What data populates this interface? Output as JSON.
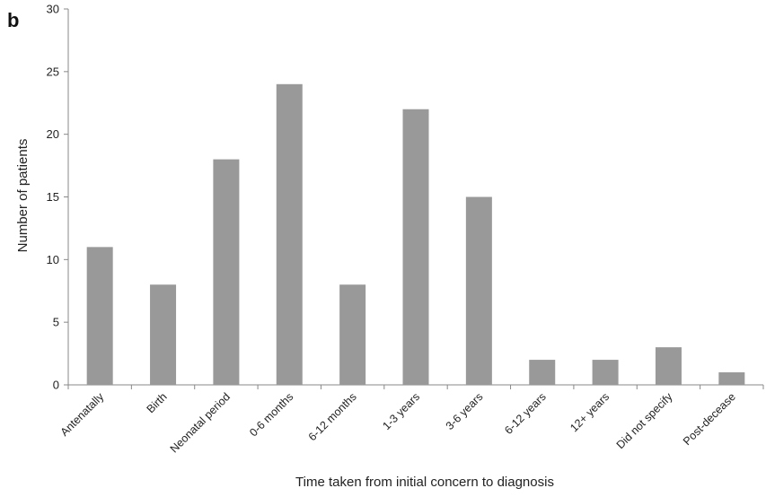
{
  "panel_label": "b",
  "chart_data": {
    "type": "bar",
    "title": "",
    "xlabel": "Time taken from initial concern to diagnosis",
    "ylabel": "Number of patients",
    "categories": [
      "Antenatally",
      "Birth",
      "Neonatal period",
      "0-6 months",
      "6-12 months",
      "1-3 years",
      "3-6 years",
      "6-12 years",
      "12+ years",
      "Did not specify",
      "Post-decease"
    ],
    "values": [
      11,
      8,
      18,
      24,
      8,
      22,
      15,
      2,
      2,
      3,
      1
    ],
    "ylim": [
      0,
      30
    ],
    "yticks": [
      0,
      5,
      10,
      15,
      20,
      25,
      30
    ],
    "grid": false,
    "bar_color": "#999999",
    "axis_color": "#888888"
  }
}
